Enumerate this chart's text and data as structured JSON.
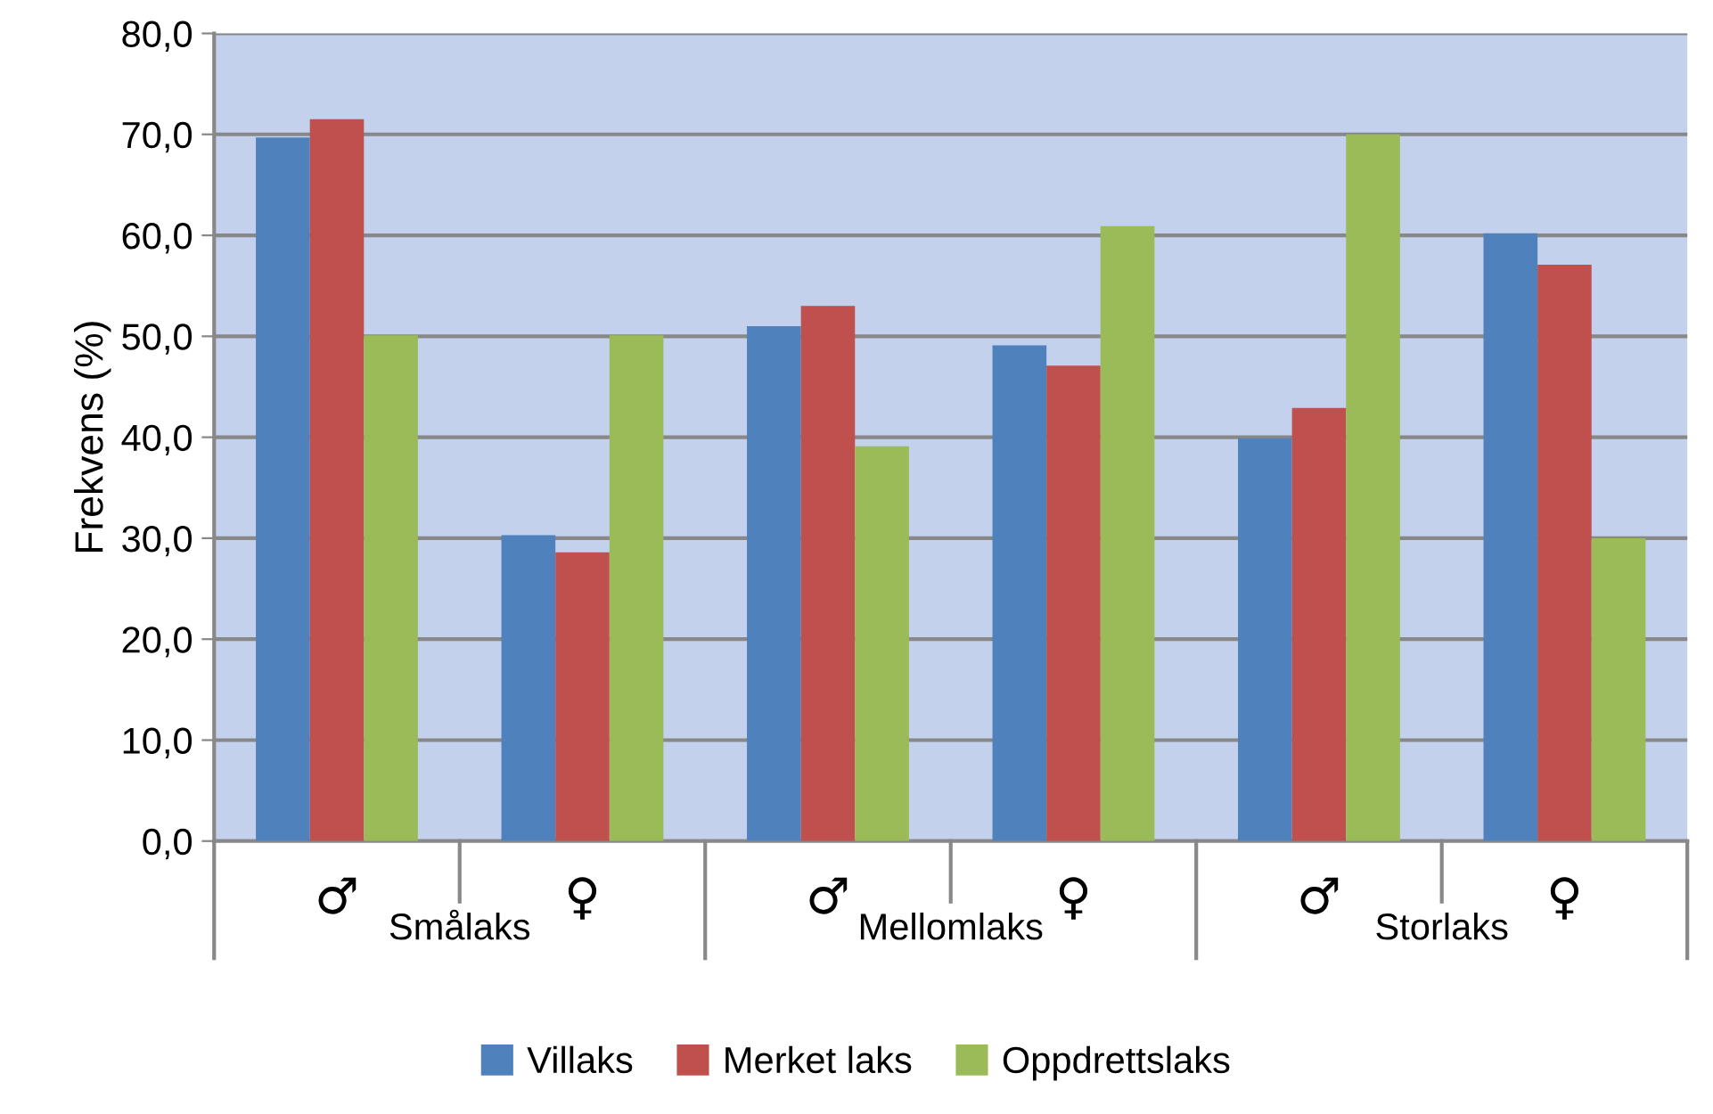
{
  "chart_data": {
    "type": "bar",
    "ylabel": "Frekvens (%)",
    "categories": [
      "♂",
      "♀",
      "♂",
      "♀",
      "♂",
      "♀"
    ],
    "annotations": [
      "Smålaks",
      "Mellomlaks",
      "Storlaks"
    ],
    "series": [
      {
        "name": "Villaks",
        "color": "#4f81bd",
        "values": [
          69.7,
          30.3,
          51.0,
          49.1,
          39.9,
          60.2
        ]
      },
      {
        "name": "Merket laks",
        "color": "#c0504d",
        "values": [
          71.5,
          28.6,
          53.0,
          47.1,
          42.9,
          57.1
        ]
      },
      {
        "name": "Oppdrettslaks",
        "color": "#9bbb59",
        "values": [
          50.1,
          50.1,
          39.1,
          60.9,
          70.0,
          30.0
        ]
      }
    ],
    "ylim": [
      0,
      80
    ],
    "yticks": [
      {
        "value": 0,
        "label": "0,0"
      },
      {
        "value": 10,
        "label": "10,0"
      },
      {
        "value": 20,
        "label": "20,0"
      },
      {
        "value": 30,
        "label": "30,0"
      },
      {
        "value": 40,
        "label": "40,0"
      },
      {
        "value": 50,
        "label": "50,0"
      },
      {
        "value": 60,
        "label": "60,0"
      },
      {
        "value": 70,
        "label": "70,0"
      },
      {
        "value": 80,
        "label": "80,0"
      }
    ],
    "grid": "y",
    "legend": "bottom"
  }
}
